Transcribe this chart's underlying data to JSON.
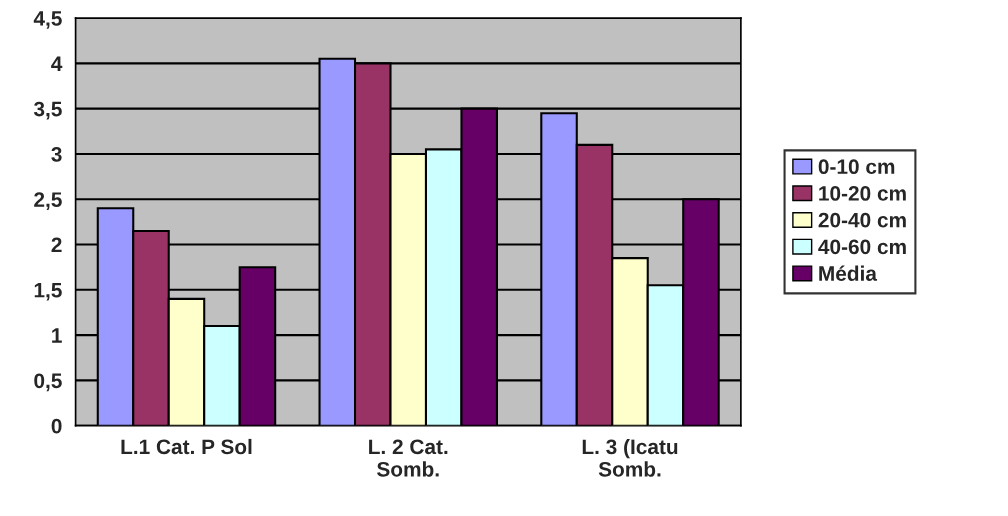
{
  "chart_data": {
    "type": "bar",
    "categories": [
      "L.1 Cat. P Sol",
      "L. 2 Cat.\nSomb.",
      "L. 3 (Icatu\nSomb."
    ],
    "series": [
      {
        "name": "0-10 cm",
        "color": "#9999ff",
        "values": [
          2.4,
          4.05,
          3.45
        ]
      },
      {
        "name": "10-20 cm",
        "color": "#993366",
        "values": [
          2.15,
          4.0,
          3.1
        ]
      },
      {
        "name": "20-40 cm",
        "color": "#ffffcc",
        "values": [
          1.4,
          3.0,
          1.85
        ]
      },
      {
        "name": "40-60 cm",
        "color": "#ccffff",
        "values": [
          1.1,
          3.05,
          1.55
        ]
      },
      {
        "name": "Média",
        "color": "#660066",
        "values": [
          1.75,
          3.5,
          2.5
        ]
      }
    ],
    "ylim": [
      0,
      4.5
    ],
    "yticks": [
      0,
      {
        "value": 0.5,
        "label": "0,5"
      },
      1,
      {
        "value": 1.5,
        "label": "1,5"
      },
      2,
      {
        "value": 2.5,
        "label": "2,5"
      },
      3,
      {
        "value": 3.5,
        "label": "3,5"
      },
      4,
      {
        "value": 4.5,
        "label": "4,5"
      }
    ],
    "grid": "y",
    "legend": "right"
  }
}
